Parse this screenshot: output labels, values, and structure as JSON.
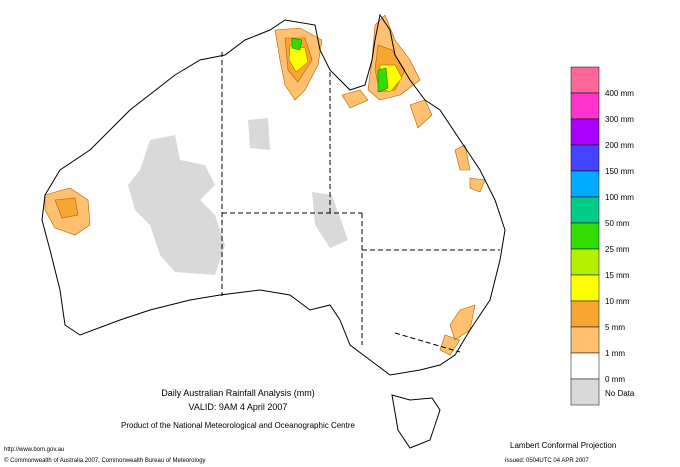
{
  "title": "Daily Australian Rainfall Analysis (mm)",
  "valid": "VALID: 9AM  4 April 2007",
  "producer": "Product of the National Meteorological and Oceanographic Centre",
  "url": "http://www.bom.gov.au",
  "copyright": "© Commonwealth of Australia 2007, Commonwealth Bureau of Meteorology",
  "projection": "Lambert Conformal Projection",
  "issued": "Issued: 0504UTC 04 APR 2007",
  "legend": {
    "colors": [
      "#ff6699",
      "#ff33cc",
      "#aa00ff",
      "#4444ff",
      "#00aaff",
      "#00cc88",
      "#33dd00",
      "#b3f000",
      "#ffff00",
      "#f7a533",
      "#ffc070",
      "#ffffff",
      "#d9d9d9"
    ],
    "labels": [
      "400 mm",
      "300 mm",
      "200 mm",
      "150 mm",
      "100 mm",
      "50 mm",
      "25 mm",
      "15 mm",
      "10 mm",
      "5 mm",
      "1 mm",
      "0 mm"
    ],
    "no_data": "No Data"
  }
}
